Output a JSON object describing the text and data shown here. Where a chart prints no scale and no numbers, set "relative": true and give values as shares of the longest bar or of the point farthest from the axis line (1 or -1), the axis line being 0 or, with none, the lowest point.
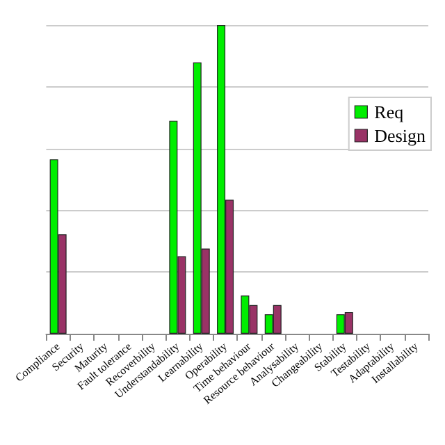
{
  "chart_data": {
    "type": "bar",
    "relative": true,
    "categories": [
      "Compliance",
      "Security",
      "Maturity",
      "Fault tolerance",
      "Recoverbility",
      "Understandability",
      "Learnability",
      "Operability",
      "Time behaviour",
      "Resource behaviour",
      "Analysability",
      "Changeability",
      "Stability",
      "Testability",
      "Adaptability",
      "Installability"
    ],
    "series": [
      {
        "name": "Req",
        "color": "#00ee00",
        "values": [
          0.565,
          null,
          null,
          null,
          null,
          0.69,
          0.879,
          1,
          0.124,
          0.063,
          null,
          null,
          0.063,
          null,
          null,
          null
        ]
      },
      {
        "name": "Design",
        "color": "#993366",
        "values": [
          0.322,
          null,
          null,
          null,
          null,
          0.251,
          0.276,
          0.434,
          0.093,
          0.093,
          null,
          null,
          0.07,
          null,
          null,
          null
        ]
      }
    ],
    "grid": "y",
    "legend": "top right"
  }
}
